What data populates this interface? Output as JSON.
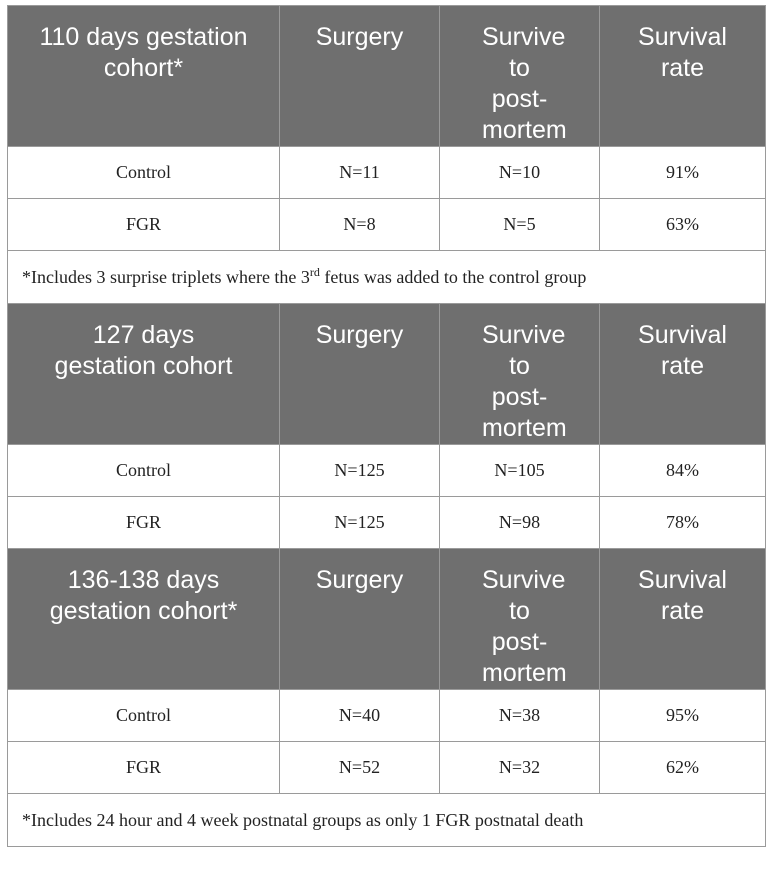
{
  "header_labels": {
    "surgery": "Surgery",
    "survive": "Survive to post-mortem",
    "survival_rate": "Survival rate"
  },
  "cohorts": [
    {
      "title": "110 days gestation cohort*",
      "rows": [
        {
          "group": "Control",
          "surgery": "N=11",
          "survive": "N=10",
          "rate": "91%"
        },
        {
          "group": "FGR",
          "surgery": "N=8",
          "survive": "N=5",
          "rate": "63%"
        }
      ],
      "note_pre": "*Includes 3 surprise triplets where the 3",
      "note_sup": "rd",
      "note_post": " fetus was added to the control group"
    },
    {
      "title": "127 days gestation cohort",
      "rows": [
        {
          "group": "Control",
          "surgery": "N=125",
          "survive": "N=105",
          "rate": "84%"
        },
        {
          "group": "FGR",
          "surgery": "N=125",
          "survive": "N=98",
          "rate": "78%"
        }
      ]
    },
    {
      "title": "136-138 days gestation cohort*",
      "rows": [
        {
          "group": "Control",
          "surgery": "N=40",
          "survive": "N=38",
          "rate": "95%"
        },
        {
          "group": "FGR",
          "surgery": "N=52",
          "survive": "N=32",
          "rate": "62%"
        }
      ],
      "note": "*Includes 24 hour and 4 week postnatal groups as only 1 FGR postnatal death"
    }
  ]
}
